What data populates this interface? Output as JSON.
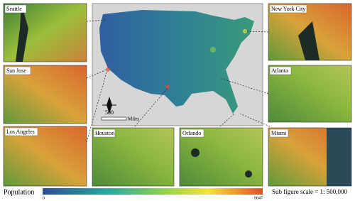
{
  "map": {
    "cities": [
      "Seattle",
      "San Jose",
      "Los Angeles",
      "Houston",
      "Orlando",
      "Miami",
      "New York City",
      "Atlanta"
    ],
    "scale_bar": {
      "value": "500",
      "unit": "Miles"
    },
    "legend": {
      "title": "Population",
      "min": 0,
      "max": 9847
    },
    "subfigure_scale": "Sub figure scale = 1: 500,000"
  }
}
